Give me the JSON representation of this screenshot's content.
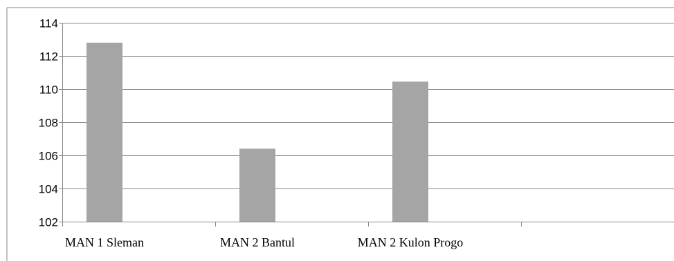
{
  "chart_data": {
    "type": "bar",
    "categories": [
      "MAN 1 Sleman",
      "MAN 2 Bantul",
      "MAN 2 Kulon Progo",
      ""
    ],
    "values": [
      112.8,
      106.4,
      110.45,
      null
    ],
    "ylim": [
      102,
      114
    ],
    "yticks": [
      102,
      104,
      106,
      108,
      110,
      112,
      114
    ],
    "title": "",
    "xlabel": "",
    "ylabel": "",
    "grid": true,
    "legend": "none",
    "colors": {
      "bar": "#a5a5a5",
      "gridline": "#868686",
      "axis": "#868686",
      "border": "#868686"
    }
  }
}
